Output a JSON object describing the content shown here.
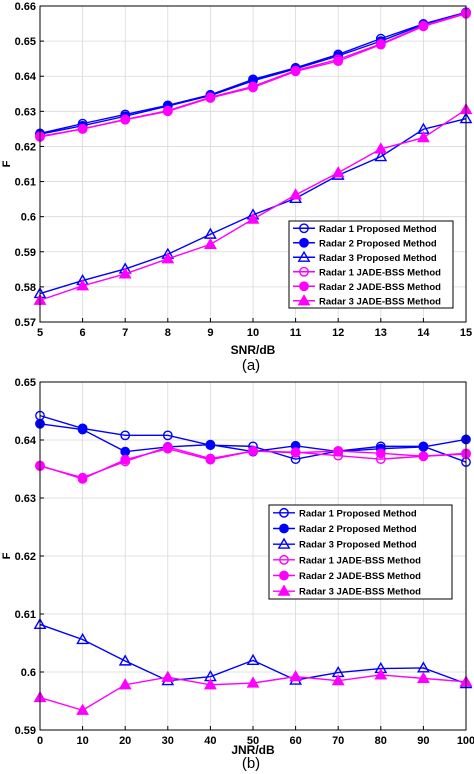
{
  "colors": {
    "proposed": "#0000ff",
    "jade": "#ff00ff",
    "axis": "#000000",
    "grid": "#d9d9d9"
  },
  "chart_data": [
    {
      "type": "line",
      "caption": "(a)",
      "xlabel": "SNR/dB",
      "ylabel": "F",
      "xlim": [
        5,
        15
      ],
      "ylim": [
        0.57,
        0.66
      ],
      "grid": true,
      "legend_position": "bottom-right",
      "x": [
        5,
        6,
        7,
        8,
        9,
        10,
        11,
        12,
        13,
        14,
        15
      ],
      "xticks": [
        "5",
        "6",
        "7",
        "8",
        "9",
        "10",
        "11",
        "12",
        "13",
        "14",
        "15"
      ],
      "yticks": [
        "0.57",
        "0.58",
        "0.59",
        "0.6",
        "0.61",
        "0.62",
        "0.63",
        "0.64",
        "0.65",
        "0.66"
      ],
      "series": [
        {
          "name": "Radar 1 Proposed Method",
          "color": "#0000ff",
          "marker": "circle-open",
          "values": [
            0.6237,
            0.6265,
            0.6291,
            0.6317,
            0.6347,
            0.6391,
            0.6424,
            0.6462,
            0.6507,
            0.6549,
            0.6582
          ]
        },
        {
          "name": "Radar 2 Proposed Method",
          "color": "#0000ff",
          "marker": "circle-filled",
          "values": [
            0.6235,
            0.6259,
            0.6286,
            0.6315,
            0.6345,
            0.6387,
            0.6421,
            0.6458,
            0.65,
            0.6547,
            0.6581
          ]
        },
        {
          "name": "Radar 3 Proposed Method",
          "color": "#0000ff",
          "marker": "triangle-open",
          "values": [
            0.5781,
            0.5818,
            0.5851,
            0.5893,
            0.595,
            0.6005,
            0.6052,
            0.6118,
            0.6171,
            0.6249,
            0.6279
          ]
        },
        {
          "name": "Radar 1 JADE-BSS Method",
          "color": "#ff00ff",
          "marker": "circle-open",
          "values": [
            0.6227,
            0.625,
            0.6277,
            0.6302,
            0.634,
            0.6371,
            0.6416,
            0.6448,
            0.6492,
            0.6544,
            0.658
          ]
        },
        {
          "name": "Radar 2 JADE-BSS Method",
          "color": "#ff00ff",
          "marker": "circle-filled",
          "values": [
            0.6229,
            0.625,
            0.6276,
            0.63,
            0.6338,
            0.6368,
            0.6414,
            0.6443,
            0.649,
            0.6542,
            0.6578
          ]
        },
        {
          "name": "Radar 3 JADE-BSS Method",
          "color": "#ff00ff",
          "marker": "triangle-filled",
          "values": [
            0.5762,
            0.5803,
            0.5837,
            0.588,
            0.5921,
            0.5993,
            0.6062,
            0.6125,
            0.6193,
            0.6225,
            0.6305
          ]
        }
      ]
    },
    {
      "type": "line",
      "caption": "(b)",
      "xlabel": "JNR/dB",
      "ylabel": "F",
      "xlim": [
        0,
        100
      ],
      "ylim": [
        0.59,
        0.65
      ],
      "grid": true,
      "legend_position": "center-right",
      "x": [
        0,
        10,
        20,
        30,
        40,
        50,
        60,
        70,
        80,
        90,
        100
      ],
      "xticks": [
        "0",
        "10",
        "20",
        "30",
        "40",
        "50",
        "60",
        "70",
        "80",
        "90",
        "100"
      ],
      "yticks": [
        "0.59",
        "0.6",
        "0.61",
        "0.62",
        "0.63",
        "0.64",
        "0.65"
      ],
      "series": [
        {
          "name": "Radar 1 Proposed Method",
          "color": "#0000ff",
          "marker": "circle-open",
          "values": [
            0.6442,
            0.642,
            0.6408,
            0.6408,
            0.6391,
            0.6389,
            0.6367,
            0.6381,
            0.6389,
            0.6389,
            0.6362
          ]
        },
        {
          "name": "Radar 2 Proposed Method",
          "color": "#0000ff",
          "marker": "circle-filled",
          "values": [
            0.6428,
            0.6418,
            0.638,
            0.6388,
            0.6392,
            0.638,
            0.639,
            0.638,
            0.6385,
            0.6388,
            0.6401
          ]
        },
        {
          "name": "Radar 3 Proposed Method",
          "color": "#0000ff",
          "marker": "triangle-open",
          "values": [
            0.6082,
            0.6056,
            0.6019,
            0.5985,
            0.5992,
            0.602,
            0.5986,
            0.5999,
            0.6006,
            0.6007,
            0.598
          ]
        },
        {
          "name": "Radar 1 JADE-BSS Method",
          "color": "#ff00ff",
          "marker": "circle-open",
          "values": [
            0.6355,
            0.6335,
            0.6363,
            0.6388,
            0.6368,
            0.6381,
            0.6379,
            0.6373,
            0.6367,
            0.6372,
            0.6376
          ]
        },
        {
          "name": "Radar 2 JADE-BSS Method",
          "color": "#ff00ff",
          "marker": "circle-filled",
          "values": [
            0.6356,
            0.6333,
            0.6366,
            0.6385,
            0.6366,
            0.6381,
            0.6378,
            0.6381,
            0.6377,
            0.6372,
            0.6377
          ]
        },
        {
          "name": "Radar 3 JADE-BSS Method",
          "color": "#ff00ff",
          "marker": "triangle-filled",
          "values": [
            0.5956,
            0.5934,
            0.5978,
            0.5991,
            0.5978,
            0.5981,
            0.5992,
            0.5985,
            0.5995,
            0.5989,
            0.5983
          ]
        }
      ]
    }
  ]
}
